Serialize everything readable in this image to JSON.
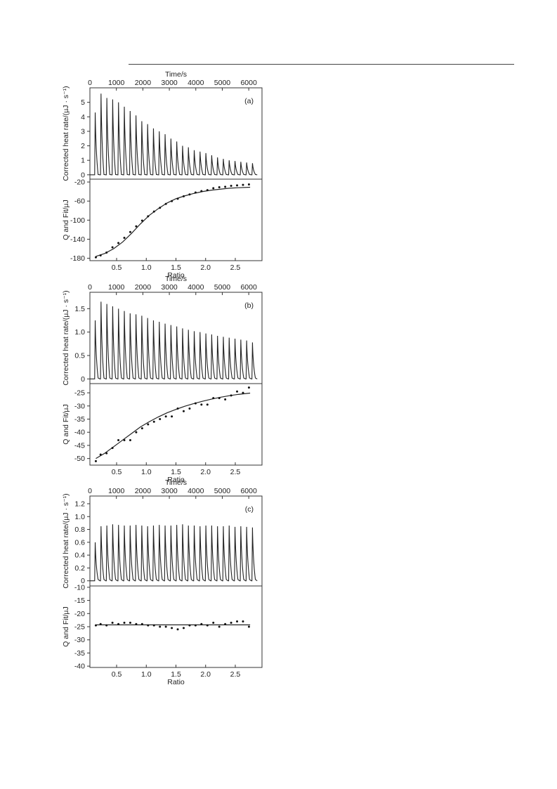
{
  "page": {
    "figure_label_note": ""
  },
  "chart_data": [
    {
      "id": "a",
      "type": "line",
      "panel_label": "(a)",
      "top": {
        "xlabel": "Time/s",
        "ylabel": "Corrected heat rate/(µJ · s⁻¹)",
        "xlim": [
          0,
          6500
        ],
        "ylim": [
          -0.3,
          6.0
        ],
        "xticks": [
          0,
          1000,
          2000,
          3000,
          4000,
          5000,
          6000
        ],
        "yticks": [
          0,
          1,
          2,
          3,
          4,
          5
        ],
        "peak_times": [
          200,
          420,
          640,
          860,
          1080,
          1300,
          1520,
          1740,
          1960,
          2180,
          2400,
          2620,
          2840,
          3060,
          3280,
          3500,
          3720,
          3940,
          4160,
          4380,
          4600,
          4820,
          5040,
          5260,
          5480,
          5700,
          5920,
          6140
        ],
        "peak_heights": [
          4.3,
          5.6,
          5.3,
          5.2,
          5.0,
          4.7,
          4.4,
          4.1,
          3.7,
          3.5,
          3.2,
          3.0,
          2.8,
          2.5,
          2.3,
          2.0,
          1.9,
          1.7,
          1.6,
          1.5,
          1.35,
          1.2,
          1.1,
          1.0,
          0.95,
          0.9,
          0.85,
          0.8
        ]
      },
      "bottom": {
        "xlabel": "Ratio",
        "ylabel": "Q and Fit/µJ",
        "xlim": [
          0.05,
          2.95
        ],
        "ylim": [
          -185,
          -14
        ],
        "xticks": [
          0.5,
          1.0,
          1.5,
          2.0,
          2.5
        ],
        "yticks": [
          -20,
          -60,
          -100,
          -140,
          -180
        ],
        "points": [
          [
            0.15,
            -178
          ],
          [
            0.23,
            -174
          ],
          [
            0.33,
            -168
          ],
          [
            0.43,
            -157
          ],
          [
            0.53,
            -148
          ],
          [
            0.63,
            -137
          ],
          [
            0.73,
            -125
          ],
          [
            0.83,
            -113
          ],
          [
            0.93,
            -101
          ],
          [
            1.03,
            -92
          ],
          [
            1.13,
            -82
          ],
          [
            1.23,
            -74
          ],
          [
            1.33,
            -66
          ],
          [
            1.43,
            -60
          ],
          [
            1.53,
            -55
          ],
          [
            1.63,
            -50
          ],
          [
            1.73,
            -46
          ],
          [
            1.83,
            -42
          ],
          [
            1.93,
            -39
          ],
          [
            2.03,
            -37
          ],
          [
            2.13,
            -33
          ],
          [
            2.23,
            -31
          ],
          [
            2.33,
            -30
          ],
          [
            2.43,
            -28
          ],
          [
            2.53,
            -27
          ],
          [
            2.63,
            -26
          ],
          [
            2.73,
            -25
          ]
        ],
        "fit": [
          [
            0.15,
            -176
          ],
          [
            0.3,
            -170
          ],
          [
            0.45,
            -160
          ],
          [
            0.6,
            -146
          ],
          [
            0.75,
            -128
          ],
          [
            0.9,
            -108
          ],
          [
            1.05,
            -90
          ],
          [
            1.2,
            -76
          ],
          [
            1.35,
            -64
          ],
          [
            1.5,
            -55
          ],
          [
            1.65,
            -49
          ],
          [
            1.8,
            -44
          ],
          [
            1.95,
            -40
          ],
          [
            2.1,
            -37
          ],
          [
            2.25,
            -35
          ],
          [
            2.4,
            -33
          ],
          [
            2.55,
            -32
          ],
          [
            2.75,
            -31
          ]
        ]
      }
    },
    {
      "id": "b",
      "type": "line",
      "panel_label": "(b)",
      "top": {
        "xlabel": "Time/s",
        "ylabel": "Corrected heat rate/(µJ · s⁻¹)",
        "xlim": [
          0,
          6500
        ],
        "ylim": [
          -0.1,
          1.85
        ],
        "xticks": [
          0,
          1000,
          2000,
          3000,
          4000,
          5000,
          6000
        ],
        "yticks": [
          0,
          0.5,
          1.0,
          1.5
        ],
        "peak_times": [
          200,
          420,
          640,
          860,
          1080,
          1300,
          1520,
          1740,
          1960,
          2180,
          2400,
          2620,
          2840,
          3060,
          3280,
          3500,
          3720,
          3940,
          4160,
          4380,
          4600,
          4820,
          5040,
          5260,
          5480,
          5700,
          5920,
          6140
        ],
        "peak_heights": [
          1.25,
          1.65,
          1.6,
          1.55,
          1.5,
          1.45,
          1.4,
          1.38,
          1.35,
          1.3,
          1.25,
          1.22,
          1.18,
          1.15,
          1.12,
          1.08,
          1.05,
          1.02,
          1.0,
          0.97,
          0.95,
          0.92,
          0.9,
          0.88,
          0.86,
          0.84,
          0.82,
          0.78
        ]
      },
      "bottom": {
        "xlabel": "Ratio",
        "ylabel": "Q and Fit/µJ",
        "xlim": [
          0.05,
          2.95
        ],
        "ylim": [
          -52.5,
          -21.5
        ],
        "xticks": [
          0.5,
          1.0,
          1.5,
          2.0,
          2.5
        ],
        "yticks": [
          -25,
          -30,
          -35,
          -40,
          -45,
          -50
        ],
        "points": [
          [
            0.15,
            -51
          ],
          [
            0.23,
            -48.5
          ],
          [
            0.33,
            -48
          ],
          [
            0.43,
            -46
          ],
          [
            0.53,
            -43
          ],
          [
            0.63,
            -43
          ],
          [
            0.73,
            -43
          ],
          [
            0.83,
            -40
          ],
          [
            0.93,
            -38.5
          ],
          [
            1.03,
            -37
          ],
          [
            1.13,
            -36
          ],
          [
            1.23,
            -35
          ],
          [
            1.33,
            -34
          ],
          [
            1.43,
            -34
          ],
          [
            1.53,
            -31
          ],
          [
            1.63,
            -32
          ],
          [
            1.73,
            -31
          ],
          [
            1.83,
            -29
          ],
          [
            1.93,
            -29.5
          ],
          [
            2.03,
            -29.5
          ],
          [
            2.13,
            -27
          ],
          [
            2.23,
            -27
          ],
          [
            2.33,
            -27.5
          ],
          [
            2.43,
            -26
          ],
          [
            2.53,
            -24.5
          ],
          [
            2.63,
            -25
          ],
          [
            2.73,
            -23
          ]
        ],
        "fit": [
          [
            0.15,
            -50
          ],
          [
            0.3,
            -48
          ],
          [
            0.45,
            -45.5
          ],
          [
            0.6,
            -43
          ],
          [
            0.75,
            -40.5
          ],
          [
            0.9,
            -38
          ],
          [
            1.05,
            -36
          ],
          [
            1.2,
            -34.2
          ],
          [
            1.35,
            -32.6
          ],
          [
            1.5,
            -31.3
          ],
          [
            1.65,
            -30.1
          ],
          [
            1.8,
            -29.1
          ],
          [
            1.95,
            -28.2
          ],
          [
            2.1,
            -27.4
          ],
          [
            2.25,
            -26.7
          ],
          [
            2.4,
            -26.1
          ],
          [
            2.55,
            -25.6
          ],
          [
            2.75,
            -25.1
          ]
        ]
      }
    },
    {
      "id": "c",
      "type": "line",
      "panel_label": "(c)",
      "top": {
        "xlabel": "Time/s",
        "ylabel": "Corrected heat rate/(µJ · s⁻¹)",
        "xlim": [
          0,
          6500
        ],
        "ylim": [
          -0.08,
          1.32
        ],
        "xticks": [
          0,
          1000,
          2000,
          3000,
          4000,
          5000,
          6000
        ],
        "yticks": [
          0,
          0.2,
          0.4,
          0.6,
          0.8,
          1.0,
          1.2
        ],
        "peak_times": [
          200,
          420,
          640,
          860,
          1080,
          1300,
          1520,
          1740,
          1960,
          2180,
          2400,
          2620,
          2840,
          3060,
          3280,
          3500,
          3720,
          3940,
          4160,
          4380,
          4600,
          4820,
          5040,
          5260,
          5480,
          5700,
          5920,
          6140
        ],
        "peak_heights": [
          0.6,
          0.85,
          0.86,
          0.88,
          0.87,
          0.86,
          0.86,
          0.87,
          0.86,
          0.85,
          0.86,
          0.87,
          0.86,
          0.86,
          0.87,
          0.88,
          0.86,
          0.86,
          0.85,
          0.86,
          0.86,
          0.85,
          0.85,
          0.86,
          0.84,
          0.85,
          0.84,
          0.83
        ]
      },
      "bottom": {
        "xlabel": "Ratio",
        "ylabel": "Q and Fit/µJ",
        "xlim": [
          0.05,
          2.95
        ],
        "ylim": [
          -40.5,
          -9.5
        ],
        "xticks": [
          0.5,
          1.0,
          1.5,
          2.0,
          2.5
        ],
        "yticks": [
          -10,
          -15,
          -20,
          -25,
          -30,
          -35,
          -40
        ],
        "points": [
          [
            0.15,
            -24.5
          ],
          [
            0.23,
            -24
          ],
          [
            0.33,
            -24.5
          ],
          [
            0.43,
            -23.5
          ],
          [
            0.53,
            -24
          ],
          [
            0.63,
            -23.5
          ],
          [
            0.73,
            -23.5
          ],
          [
            0.83,
            -24
          ],
          [
            0.93,
            -24
          ],
          [
            1.03,
            -24.5
          ],
          [
            1.13,
            -24.5
          ],
          [
            1.23,
            -25
          ],
          [
            1.33,
            -25
          ],
          [
            1.43,
            -25.5
          ],
          [
            1.53,
            -26
          ],
          [
            1.63,
            -25.5
          ],
          [
            1.73,
            -24.5
          ],
          [
            1.83,
            -24.5
          ],
          [
            1.93,
            -24
          ],
          [
            2.03,
            -24.5
          ],
          [
            2.13,
            -23.5
          ],
          [
            2.23,
            -25
          ],
          [
            2.33,
            -24
          ],
          [
            2.43,
            -23.5
          ],
          [
            2.53,
            -23
          ],
          [
            2.63,
            -23
          ],
          [
            2.73,
            -25
          ]
        ],
        "fit": [
          [
            0.15,
            -24.3
          ],
          [
            0.5,
            -24.3
          ],
          [
            1.0,
            -24.3
          ],
          [
            1.5,
            -24.3
          ],
          [
            2.0,
            -24.3
          ],
          [
            2.5,
            -24.3
          ],
          [
            2.75,
            -24.3
          ]
        ]
      }
    }
  ]
}
